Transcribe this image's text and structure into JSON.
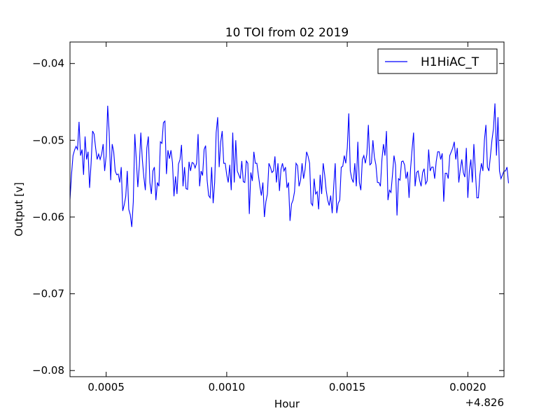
{
  "chart_data": {
    "type": "line",
    "title": "10 TOI from 02 2019",
    "xlabel": "Hour",
    "ylabel": "Output [v]",
    "x_offset_label": "+4.826",
    "xlim": [
      0.00035,
      0.00215
    ],
    "ylim": [
      -0.0808,
      -0.0372
    ],
    "x_ticks": [
      {
        "value": 0.0005,
        "label": "0.0005"
      },
      {
        "value": 0.001,
        "label": "0.0010"
      },
      {
        "value": 0.0015,
        "label": "0.0015"
      },
      {
        "value": 0.002,
        "label": "0.0020"
      }
    ],
    "y_ticks": [
      {
        "value": -0.04,
        "label": "−0.04"
      },
      {
        "value": -0.05,
        "label": "−0.05"
      },
      {
        "value": -0.06,
        "label": "−0.06"
      },
      {
        "value": -0.07,
        "label": "−0.07"
      },
      {
        "value": -0.08,
        "label": "−0.08"
      }
    ],
    "grid": false,
    "legend_position": "top-right",
    "series": [
      {
        "name": "H1HiAC_T",
        "color": "#0000ff",
        "x_start": 0.00035,
        "x_step": 6.25e-06,
        "values": [
          -0.0577,
          -0.0545,
          -0.052,
          -0.0513,
          -0.0508,
          -0.0512,
          -0.0476,
          -0.052,
          -0.0512,
          -0.0545,
          -0.0495,
          -0.0525,
          -0.0515,
          -0.0562,
          -0.053,
          -0.0488,
          -0.0492,
          -0.051,
          -0.0525,
          -0.0518,
          -0.0525,
          -0.0518,
          -0.0505,
          -0.054,
          -0.052,
          -0.0455,
          -0.049,
          -0.0552,
          -0.0505,
          -0.0515,
          -0.054,
          -0.0545,
          -0.0544,
          -0.0555,
          -0.0535,
          -0.0592,
          -0.0584,
          -0.0573,
          -0.054,
          -0.059,
          -0.0597,
          -0.0613,
          -0.058,
          -0.0492,
          -0.0525,
          -0.0561,
          -0.0533,
          -0.049,
          -0.0525,
          -0.0548,
          -0.0565,
          -0.051,
          -0.0495,
          -0.0555,
          -0.057,
          -0.054,
          -0.0535,
          -0.0578,
          -0.0555,
          -0.056,
          -0.0502,
          -0.0504,
          -0.0477,
          -0.0475,
          -0.0544,
          -0.0513,
          -0.0524,
          -0.0513,
          -0.0529,
          -0.0573,
          -0.0547,
          -0.057,
          -0.0531,
          -0.0525,
          -0.0506,
          -0.056,
          -0.0535,
          -0.0563,
          -0.0564,
          -0.0528,
          -0.054,
          -0.0529,
          -0.053,
          -0.0536,
          -0.053,
          -0.0492,
          -0.056,
          -0.054,
          -0.0546,
          -0.0512,
          -0.0507,
          -0.0552,
          -0.0572,
          -0.0575,
          -0.0535,
          -0.0582,
          -0.0555,
          -0.049,
          -0.047,
          -0.0535,
          -0.0502,
          -0.0488,
          -0.053,
          -0.053,
          -0.0545,
          -0.0555,
          -0.0532,
          -0.0565,
          -0.049,
          -0.0555,
          -0.05,
          -0.054,
          -0.0545,
          -0.055,
          -0.0527,
          -0.0554,
          -0.0555,
          -0.0527,
          -0.053,
          -0.0596,
          -0.0542,
          -0.0553,
          -0.0515,
          -0.053,
          -0.053,
          -0.0545,
          -0.056,
          -0.0572,
          -0.0555,
          -0.06,
          -0.058,
          -0.057,
          -0.053,
          -0.0535,
          -0.0542,
          -0.054,
          -0.0521,
          -0.0555,
          -0.053,
          -0.0566,
          -0.0538,
          -0.053,
          -0.054,
          -0.0535,
          -0.0562,
          -0.0555,
          -0.0605,
          -0.0583,
          -0.0578,
          -0.0567,
          -0.053,
          -0.0533,
          -0.056,
          -0.0552,
          -0.053,
          -0.055,
          -0.0538,
          -0.0515,
          -0.0521,
          -0.053,
          -0.0582,
          -0.0585,
          -0.055,
          -0.057,
          -0.0567,
          -0.059,
          -0.0545,
          -0.057,
          -0.053,
          -0.0545,
          -0.0565,
          -0.0578,
          -0.0585,
          -0.0572,
          -0.0595,
          -0.056,
          -0.053,
          -0.0595,
          -0.0582,
          -0.0578,
          -0.0535,
          -0.0534,
          -0.052,
          -0.053,
          -0.051,
          -0.0465,
          -0.054,
          -0.055,
          -0.0555,
          -0.053,
          -0.056,
          -0.0502,
          -0.0555,
          -0.0565,
          -0.0525,
          -0.052,
          -0.053,
          -0.0518,
          -0.048,
          -0.0532,
          -0.053,
          -0.05,
          -0.0522,
          -0.0532,
          -0.0555,
          -0.0555,
          -0.056,
          -0.0525,
          -0.0505,
          -0.052,
          -0.0488,
          -0.0578,
          -0.0565,
          -0.0568,
          -0.0545,
          -0.052,
          -0.0532,
          -0.0598,
          -0.055,
          -0.0552,
          -0.0528,
          -0.0527,
          -0.0532,
          -0.055,
          -0.0541,
          -0.0575,
          -0.0537,
          -0.0512,
          -0.049,
          -0.056,
          -0.0542,
          -0.054,
          -0.0552,
          -0.056,
          -0.0542,
          -0.0537,
          -0.0557,
          -0.0553,
          -0.0512,
          -0.054,
          -0.0535,
          -0.0535,
          -0.055,
          -0.0528,
          -0.0515,
          -0.0515,
          -0.0525,
          -0.0517,
          -0.058,
          -0.0543,
          -0.0543,
          -0.055,
          -0.052,
          -0.0515,
          -0.051,
          -0.0502,
          -0.0525,
          -0.051,
          -0.0555,
          -0.0538,
          -0.0525,
          -0.0542,
          -0.0548,
          -0.051,
          -0.0575,
          -0.054,
          -0.0525,
          -0.0555,
          -0.0505,
          -0.054,
          -0.0575,
          -0.0575,
          -0.0545,
          -0.053,
          -0.054,
          -0.05,
          -0.048,
          -0.0535,
          -0.054,
          -0.052,
          -0.05,
          -0.0485,
          -0.0452,
          -0.052,
          -0.047,
          -0.054,
          -0.055,
          -0.0545,
          -0.054,
          -0.054,
          -0.0535,
          -0.0556
        ]
      }
    ]
  }
}
